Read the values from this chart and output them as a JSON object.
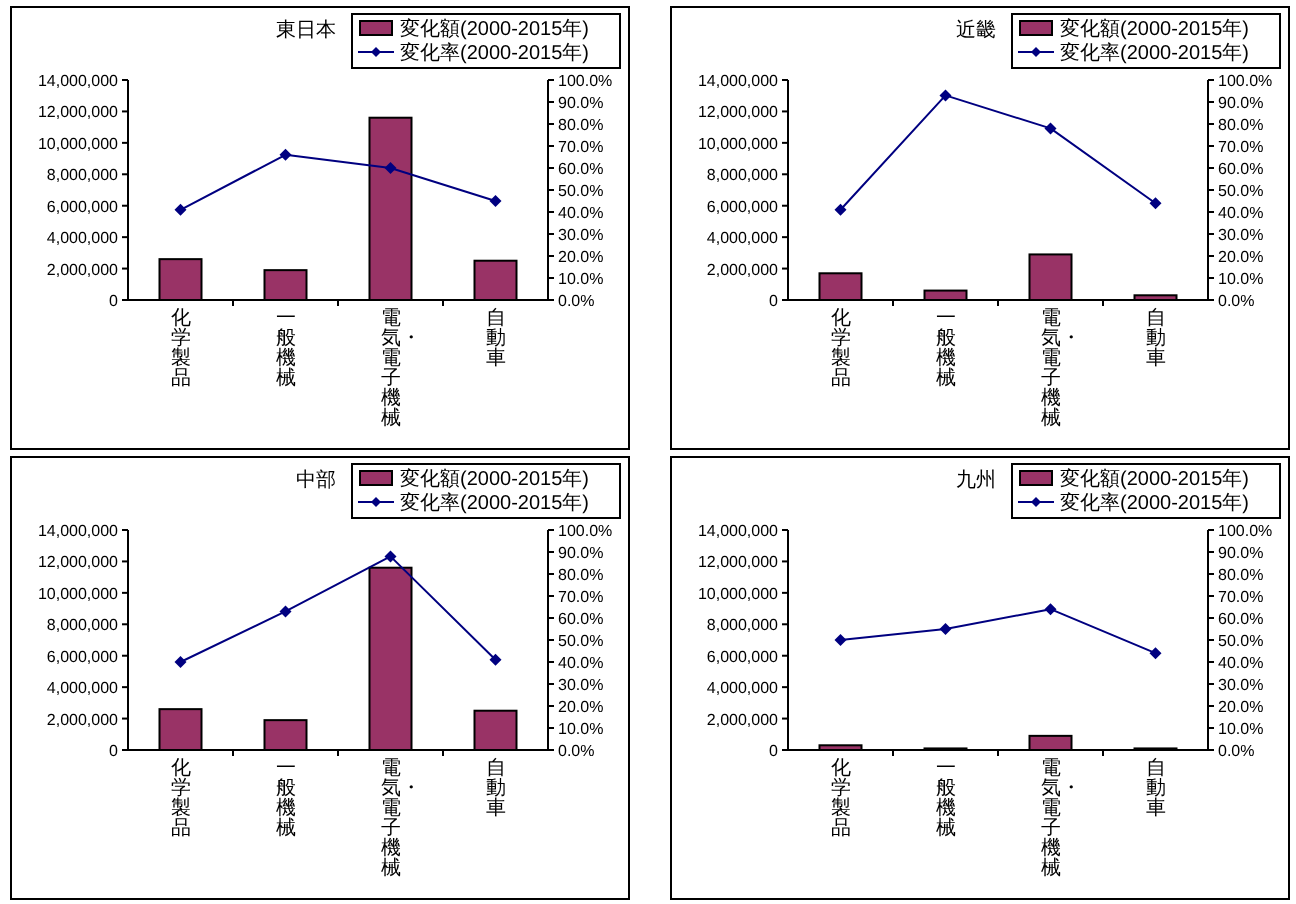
{
  "chart_data": [
    {
      "type": "bar",
      "title": "東日本",
      "categories": [
        "化学製品",
        "一般機械",
        "電気・電子機械",
        "自動車"
      ],
      "series": [
        {
          "name": "変化額(2000-2015年)",
          "color": "#993366",
          "values": [
            2600000,
            1900000,
            11600000,
            2500000
          ]
        },
        {
          "name": "変化率(2000-2015年)",
          "type": "line",
          "axis": "y2",
          "color": "#000080",
          "marker": "diamond",
          "values": [
            41,
            66,
            60,
            45
          ]
        }
      ],
      "ylim": [
        0,
        14000000
      ],
      "yticks": [
        {
          "value": 0,
          "label": "0"
        },
        {
          "value": 2000000,
          "label": "2,000,000"
        },
        {
          "value": 4000000,
          "label": "4,000,000"
        },
        {
          "value": 6000000,
          "label": "6,000,000"
        },
        {
          "value": 8000000,
          "label": "8,000,000"
        },
        {
          "value": 10000000,
          "label": "10,000,000"
        },
        {
          "value": 12000000,
          "label": "12,000,000"
        },
        {
          "value": 14000000,
          "label": "14,000,000"
        }
      ],
      "y2lim": [
        0,
        100
      ],
      "y2ticks": [
        {
          "value": 0,
          "label": "0.0%"
        },
        {
          "value": 10,
          "label": "10.0%"
        },
        {
          "value": 20,
          "label": "20.0%"
        },
        {
          "value": 30,
          "label": "30.0%"
        },
        {
          "value": 40,
          "label": "40.0%"
        },
        {
          "value": 50,
          "label": "50.0%"
        },
        {
          "value": 60,
          "label": "60.0%"
        },
        {
          "value": 70,
          "label": "70.0%"
        },
        {
          "value": 80,
          "label": "80.0%"
        },
        {
          "value": 90,
          "label": "90.0%"
        },
        {
          "value": 100,
          "label": "100.0%"
        }
      ],
      "legend": "top right"
    },
    {
      "type": "bar",
      "title": "近畿",
      "categories": [
        "化学製品",
        "一般機械",
        "電気・電子機械",
        "自動車"
      ],
      "series": [
        {
          "name": "変化額(2000-2015年)",
          "color": "#993366",
          "values": [
            1700000,
            600000,
            2900000,
            300000
          ]
        },
        {
          "name": "変化率(2000-2015年)",
          "type": "line",
          "axis": "y2",
          "color": "#000080",
          "marker": "diamond",
          "values": [
            41,
            93,
            78,
            44
          ]
        }
      ],
      "ylim": [
        0,
        14000000
      ],
      "yticks": [
        {
          "value": 0,
          "label": "0"
        },
        {
          "value": 2000000,
          "label": "2,000,000"
        },
        {
          "value": 4000000,
          "label": "4,000,000"
        },
        {
          "value": 6000000,
          "label": "6,000,000"
        },
        {
          "value": 8000000,
          "label": "8,000,000"
        },
        {
          "value": 10000000,
          "label": "10,000,000"
        },
        {
          "value": 12000000,
          "label": "12,000,000"
        },
        {
          "value": 14000000,
          "label": "14,000,000"
        }
      ],
      "y2lim": [
        0,
        100
      ],
      "y2ticks": [
        {
          "value": 0,
          "label": "0.0%"
        },
        {
          "value": 10,
          "label": "10.0%"
        },
        {
          "value": 20,
          "label": "20.0%"
        },
        {
          "value": 30,
          "label": "30.0%"
        },
        {
          "value": 40,
          "label": "40.0%"
        },
        {
          "value": 50,
          "label": "50.0%"
        },
        {
          "value": 60,
          "label": "60.0%"
        },
        {
          "value": 70,
          "label": "70.0%"
        },
        {
          "value": 80,
          "label": "80.0%"
        },
        {
          "value": 90,
          "label": "90.0%"
        },
        {
          "value": 100,
          "label": "100.0%"
        }
      ],
      "legend": "top right"
    },
    {
      "type": "bar",
      "title": "中部",
      "categories": [
        "化学製品",
        "一般機械",
        "電気・電子機械",
        "自動車"
      ],
      "series": [
        {
          "name": "変化額(2000-2015年)",
          "color": "#993366",
          "values": [
            2600000,
            1900000,
            11600000,
            2500000
          ]
        },
        {
          "name": "変化率(2000-2015年)",
          "type": "line",
          "axis": "y2",
          "color": "#000080",
          "marker": "diamond",
          "values": [
            40,
            63,
            88,
            41
          ]
        }
      ],
      "ylim": [
        0,
        14000000
      ],
      "yticks": [
        {
          "value": 0,
          "label": "0"
        },
        {
          "value": 2000000,
          "label": "2,000,000"
        },
        {
          "value": 4000000,
          "label": "4,000,000"
        },
        {
          "value": 6000000,
          "label": "6,000,000"
        },
        {
          "value": 8000000,
          "label": "8,000,000"
        },
        {
          "value": 10000000,
          "label": "10,000,000"
        },
        {
          "value": 12000000,
          "label": "12,000,000"
        },
        {
          "value": 14000000,
          "label": "14,000,000"
        }
      ],
      "y2lim": [
        0,
        100
      ],
      "y2ticks": [
        {
          "value": 0,
          "label": "0.0%"
        },
        {
          "value": 10,
          "label": "10.0%"
        },
        {
          "value": 20,
          "label": "20.0%"
        },
        {
          "value": 30,
          "label": "30.0%"
        },
        {
          "value": 40,
          "label": "40.0%"
        },
        {
          "value": 50,
          "label": "50.0%"
        },
        {
          "value": 60,
          "label": "60.0%"
        },
        {
          "value": 70,
          "label": "70.0%"
        },
        {
          "value": 80,
          "label": "80.0%"
        },
        {
          "value": 90,
          "label": "90.0%"
        },
        {
          "value": 100,
          "label": "100.0%"
        }
      ],
      "legend": "top right"
    },
    {
      "type": "bar",
      "title": "九州",
      "categories": [
        "化学製品",
        "一般機械",
        "電気・電子機械",
        "自動車"
      ],
      "series": [
        {
          "name": "変化額(2000-2015年)",
          "color": "#993366",
          "values": [
            300000,
            100000,
            900000,
            100000
          ]
        },
        {
          "name": "変化率(2000-2015年)",
          "type": "line",
          "axis": "y2",
          "color": "#000080",
          "marker": "diamond",
          "values": [
            50,
            55,
            64,
            44
          ]
        }
      ],
      "ylim": [
        0,
        14000000
      ],
      "yticks": [
        {
          "value": 0,
          "label": "0"
        },
        {
          "value": 2000000,
          "label": "2,000,000"
        },
        {
          "value": 4000000,
          "label": "4,000,000"
        },
        {
          "value": 6000000,
          "label": "6,000,000"
        },
        {
          "value": 8000000,
          "label": "8,000,000"
        },
        {
          "value": 10000000,
          "label": "10,000,000"
        },
        {
          "value": 12000000,
          "label": "12,000,000"
        },
        {
          "value": 14000000,
          "label": "14,000,000"
        }
      ],
      "y2lim": [
        0,
        100
      ],
      "y2ticks": [
        {
          "value": 0,
          "label": "0.0%"
        },
        {
          "value": 10,
          "label": "10.0%"
        },
        {
          "value": 20,
          "label": "20.0%"
        },
        {
          "value": 30,
          "label": "30.0%"
        },
        {
          "value": 40,
          "label": "40.0%"
        },
        {
          "value": 50,
          "label": "50.0%"
        },
        {
          "value": 60,
          "label": "60.0%"
        },
        {
          "value": 70,
          "label": "70.0%"
        },
        {
          "value": 80,
          "label": "80.0%"
        },
        {
          "value": 90,
          "label": "90.0%"
        },
        {
          "value": 100,
          "label": "100.0%"
        }
      ],
      "legend": "top right"
    }
  ]
}
